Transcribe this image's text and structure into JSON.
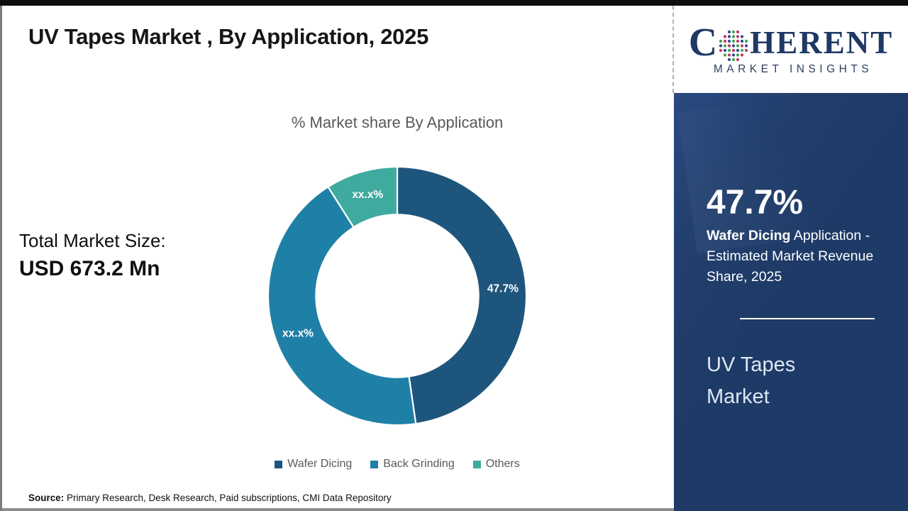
{
  "page": {
    "title": "UV Tapes Market , By Application, 2025",
    "source_label": "Source:",
    "source_text": " Primary Research, Desk Research, Paid subscriptions, CMI Data Repository"
  },
  "left_panel": {
    "total_label": "Total Market Size:",
    "total_value": "USD 673.2 Mn"
  },
  "chart_data": {
    "type": "pie",
    "donut": true,
    "title": "% Market share By Application",
    "categories": [
      "Wafer Dicing",
      "Back Grinding",
      "Others"
    ],
    "values": [
      47.7,
      43.3,
      9.0
    ],
    "slice_labels": [
      "47.7%",
      "xx.x%",
      "xx.x%"
    ],
    "colors": [
      "#1e557d",
      "#1f80a7",
      "#3faa9e"
    ],
    "inner_radius_ratio": 0.63,
    "legend_position": "bottom",
    "note": "Back Grinding and Others shares are masked as xx.x% in the figure; values estimated from arc angles"
  },
  "sidebar": {
    "logo": {
      "word_start": "C",
      "word_end": "HERENT",
      "icon": "dotted-globe-icon",
      "subtitle": "MARKET INSIGHTS",
      "brand_color": "#1f3864"
    },
    "highlight_value": "47.7%",
    "highlight_bold": "Wafer Dicing",
    "highlight_rest": " Application - Estimated Market Revenue Share, 2025",
    "market_name": "UV Tapes Market",
    "panel_color": "#1e3a66"
  }
}
